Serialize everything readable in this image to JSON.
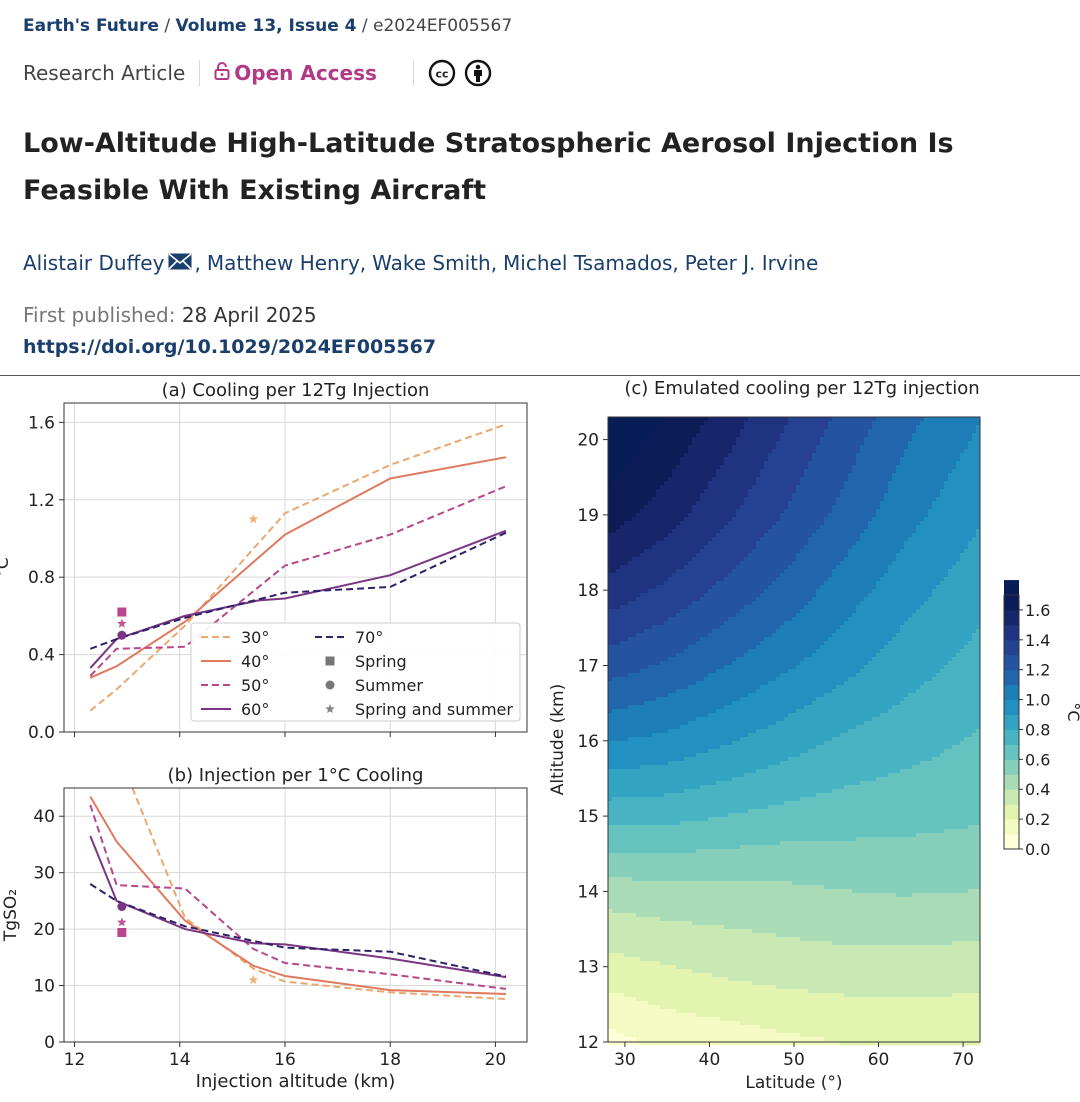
{
  "header": {
    "journal": "Earth's Future",
    "volume_issue": "Volume 13, Issue 4",
    "article_id": "e2024EF005567",
    "article_type": "Research Article",
    "access": "Open Access",
    "title": "Low-Altitude High-Latitude Stratospheric Aerosol Injection Is Feasible With Existing Aircraft",
    "authors": [
      "Alistair Duffey",
      "Matthew Henry",
      "Wake Smith",
      "Michel Tsamados",
      "Peter J. Irvine"
    ],
    "first_published_label": "First published:",
    "first_published_date": "28 April 2025",
    "doi": "https://doi.org/10.1029/2024EF005567"
  },
  "colors": {
    "30": "#eaa86e",
    "40": "#e07a5f",
    "50": "#b8478c",
    "60": "#7b3585",
    "70": "#2e2266",
    "link": "#1b3f6c",
    "open_access": "#b13a86"
  },
  "chart_data": [
    {
      "type": "line",
      "title": "(a) Cooling per 12Tg Injection",
      "xlabel": "",
      "ylabel": "°C",
      "xlim": [
        11.8,
        20.6
      ],
      "ylim": [
        0,
        1.7
      ],
      "xticks": [
        12,
        14,
        16,
        18,
        20
      ],
      "yticks": [
        "0.0",
        "0.4",
        "0.8",
        "1.2",
        "1.6"
      ],
      "grid": true,
      "legend_position": "lower-center",
      "series": [
        {
          "name": "30°",
          "style": "dashed",
          "color_key": "30",
          "x": [
            12.3,
            12.8,
            14.1,
            16.0,
            18.0,
            20.2
          ],
          "y": [
            0.11,
            0.22,
            0.55,
            1.13,
            1.38,
            1.59
          ]
        },
        {
          "name": "40°",
          "style": "solid",
          "color_key": "40",
          "x": [
            12.3,
            12.8,
            14.1,
            16.0,
            18.0,
            20.2
          ],
          "y": [
            0.28,
            0.34,
            0.57,
            1.02,
            1.31,
            1.42
          ]
        },
        {
          "name": "50°",
          "style": "dashed",
          "color_key": "50",
          "x": [
            12.3,
            12.8,
            14.1,
            16.0,
            18.0,
            20.2
          ],
          "y": [
            0.29,
            0.43,
            0.44,
            0.86,
            1.02,
            1.27
          ]
        },
        {
          "name": "60°",
          "style": "solid",
          "color_key": "60",
          "x": [
            12.3,
            12.8,
            14.1,
            15.5,
            16.0,
            18.0,
            20.2
          ],
          "y": [
            0.33,
            0.48,
            0.6,
            0.68,
            0.69,
            0.81,
            1.04
          ]
        },
        {
          "name": "70°",
          "style": "dashed",
          "color_key": "70",
          "x": [
            12.3,
            12.8,
            14.1,
            16.0,
            18.0,
            20.2
          ],
          "y": [
            0.43,
            0.48,
            0.59,
            0.72,
            0.75,
            1.03
          ]
        }
      ],
      "markers": [
        {
          "name": "Spring",
          "marker": "square",
          "color_key": "50",
          "x": 12.9,
          "y": 0.62
        },
        {
          "name": "Summer",
          "marker": "circle",
          "color_key": "60",
          "x": 12.9,
          "y": 0.5
        },
        {
          "name": "Spring and summer",
          "marker": "star",
          "color_key": "50",
          "x": 12.9,
          "y": 0.56
        },
        {
          "name": "Spring and summer",
          "marker": "star",
          "color_key": "30",
          "x": 15.4,
          "y": 1.1
        }
      ],
      "legend": [
        "30°",
        "40°",
        "50°",
        "60°",
        "70°",
        "Spring",
        "Summer",
        "Spring and summer"
      ]
    },
    {
      "type": "line",
      "title": "(b) Injection per 1°C Cooling",
      "xlabel": "Injection altitude (km)",
      "ylabel": "TgSO₂",
      "xlim": [
        11.8,
        20.6
      ],
      "ylim": [
        0,
        45
      ],
      "xticks": [
        "12",
        "14",
        "16",
        "18",
        "20"
      ],
      "yticks": [
        "0",
        "10",
        "20",
        "30",
        "40"
      ],
      "grid": true,
      "series": [
        {
          "name": "30°",
          "style": "dashed",
          "color_key": "30",
          "x": [
            13.1,
            14.1,
            15.4,
            16.0,
            18.0,
            20.2
          ],
          "y": [
            45,
            22,
            13,
            10.7,
            8.8,
            7.6
          ]
        },
        {
          "name": "40°",
          "style": "solid",
          "color_key": "40",
          "x": [
            12.3,
            12.8,
            14.1,
            15.4,
            16.0,
            18.0,
            20.2
          ],
          "y": [
            43.5,
            35.5,
            21.5,
            13.5,
            11.7,
            9.2,
            8.5
          ]
        },
        {
          "name": "50°",
          "style": "dashed",
          "color_key": "50",
          "x": [
            12.3,
            12.8,
            14.1,
            15.4,
            16.0,
            18.0,
            20.2
          ],
          "y": [
            42,
            27.8,
            27.2,
            16.5,
            14.0,
            12.0,
            9.4
          ]
        },
        {
          "name": "60°",
          "style": "solid",
          "color_key": "60",
          "x": [
            12.3,
            12.8,
            14.1,
            15.4,
            16.0,
            18.0,
            20.2
          ],
          "y": [
            36.5,
            25.0,
            20.0,
            17.5,
            17.3,
            14.8,
            11.5
          ]
        },
        {
          "name": "70°",
          "style": "dashed",
          "color_key": "70",
          "x": [
            12.3,
            12.8,
            14.1,
            16.0,
            18.0,
            20.2
          ],
          "y": [
            28.0,
            25.0,
            20.5,
            16.7,
            16.0,
            11.6
          ]
        }
      ],
      "markers": [
        {
          "name": "Spring",
          "marker": "square",
          "color_key": "50",
          "x": 12.9,
          "y": 19.4
        },
        {
          "name": "Summer",
          "marker": "circle",
          "color_key": "60",
          "x": 12.9,
          "y": 24.0
        },
        {
          "name": "Spring and summer",
          "marker": "star",
          "color_key": "50",
          "x": 12.9,
          "y": 21.2
        },
        {
          "name": "Spring and summer",
          "marker": "star",
          "color_key": "30",
          "x": 15.4,
          "y": 11.0
        }
      ]
    },
    {
      "type": "heatmap",
      "title": "(c) Emulated cooling per 12Tg injection",
      "xlabel": "Latitude (°)",
      "ylabel": "Altitude (km)",
      "xlim": [
        28,
        72
      ],
      "ylim": [
        12,
        20.3
      ],
      "xticks": [
        "30",
        "40",
        "50",
        "60",
        "70"
      ],
      "yticks": [
        "12",
        "13",
        "14",
        "15",
        "16",
        "17",
        "18",
        "19",
        "20"
      ],
      "colorbar_label": "°C",
      "colorbar_ticks": [
        "0.0",
        "0.2",
        "0.4",
        "0.6",
        "0.8",
        "1.0",
        "1.2",
        "1.4",
        "1.6"
      ],
      "colorbar_range": [
        0,
        1.7
      ],
      "levels": [
        0.0,
        0.1,
        0.2,
        0.3,
        0.4,
        0.5,
        0.6,
        0.7,
        0.8,
        0.9,
        1.0,
        1.1,
        1.2,
        1.3,
        1.4,
        1.5,
        1.6,
        1.7
      ],
      "colormap": [
        "#ffffd9",
        "#f4fbc2",
        "#e3f4b1",
        "#c8e9b4",
        "#a9dcb6",
        "#86cfbb",
        "#64c2bf",
        "#48b4c3",
        "#33a3c2",
        "#2290c0",
        "#1d7db7",
        "#2166ad",
        "#24539f",
        "#244291",
        "#1f3380",
        "#17266b",
        "#0c1c57",
        "#081d58"
      ],
      "grid_lat": [
        28,
        35,
        42,
        49,
        56,
        63,
        72
      ],
      "grid_alt": [
        12,
        13,
        14,
        15,
        16,
        17,
        18,
        19,
        20.3
      ],
      "values": [
        [
          0.06,
          0.12,
          0.14,
          0.17,
          0.19,
          0.2,
          0.2
        ],
        [
          0.25,
          0.28,
          0.31,
          0.33,
          0.34,
          0.34,
          0.33
        ],
        [
          0.42,
          0.44,
          0.44,
          0.45,
          0.47,
          0.48,
          0.47
        ],
        [
          0.7,
          0.69,
          0.66,
          0.63,
          0.61,
          0.6,
          0.58
        ],
        [
          0.95,
          0.92,
          0.86,
          0.8,
          0.74,
          0.7,
          0.65
        ],
        [
          1.18,
          1.12,
          1.04,
          0.96,
          0.88,
          0.8,
          0.72
        ],
        [
          1.38,
          1.3,
          1.2,
          1.1,
          0.99,
          0.89,
          0.79
        ],
        [
          1.56,
          1.46,
          1.34,
          1.22,
          1.1,
          0.98,
          0.86
        ],
        [
          1.72,
          1.6,
          1.47,
          1.33,
          1.2,
          1.07,
          0.95
        ]
      ]
    }
  ]
}
